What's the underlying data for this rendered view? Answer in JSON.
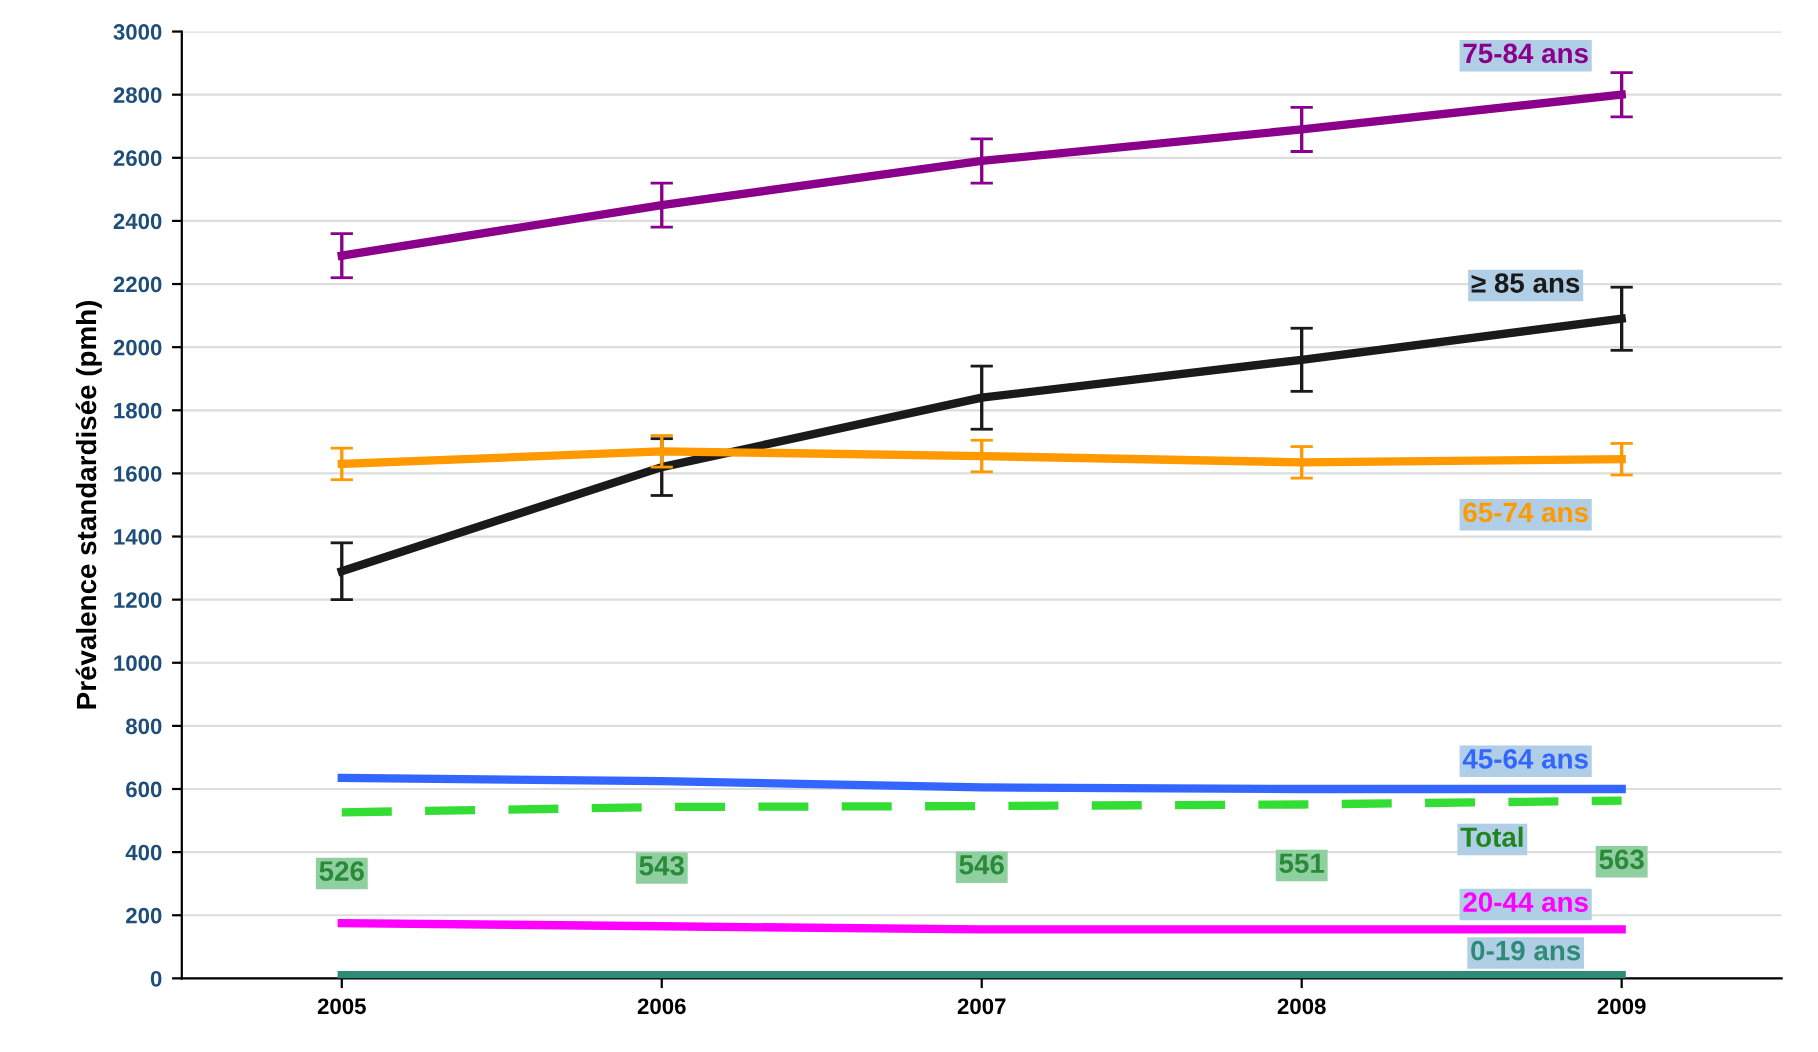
{
  "chart_data": {
    "type": "line",
    "ylabel": "Prévalence standardisée (pmh)",
    "categories": [
      "2005",
      "2006",
      "2007",
      "2008",
      "2009"
    ],
    "ylim": [
      0,
      3000
    ],
    "yticks": [
      0,
      200,
      400,
      600,
      800,
      1000,
      1200,
      1400,
      1600,
      1800,
      2000,
      2200,
      2400,
      2600,
      2800,
      3000
    ],
    "grid": "y",
    "series": [
      {
        "name": "75-84 ans",
        "color": "#8b008b",
        "values": [
          2290,
          2450,
          2590,
          2690,
          2800
        ],
        "errors": [
          70,
          70,
          70,
          70,
          70
        ]
      },
      {
        "name": "≥ 85 ans",
        "color": "#1a1a1a",
        "values": [
          1290,
          1620,
          1840,
          1960,
          2090
        ],
        "errors": [
          90,
          90,
          100,
          100,
          100
        ]
      },
      {
        "name": "65-74 ans",
        "color": "#ff9900",
        "values": [
          1630,
          1670,
          1655,
          1635,
          1645
        ],
        "errors": [
          50,
          50,
          50,
          50,
          50
        ]
      },
      {
        "name": "45-64 ans",
        "color": "#3366ff",
        "values": [
          635,
          625,
          605,
          600,
          600
        ]
      },
      {
        "name": "Total",
        "color": "#33dd33",
        "line_style": "dashed",
        "values": [
          526,
          543,
          546,
          551,
          563
        ],
        "value_labels": [
          "526",
          "543",
          "546",
          "551",
          "563"
        ]
      },
      {
        "name": "20-44 ans",
        "color": "#ff00ff",
        "values": [
          175,
          165,
          155,
          155,
          155
        ]
      },
      {
        "name": "0-19 ans",
        "color": "#2e8b77",
        "values": [
          10,
          10,
          10,
          10,
          10
        ]
      }
    ]
  }
}
